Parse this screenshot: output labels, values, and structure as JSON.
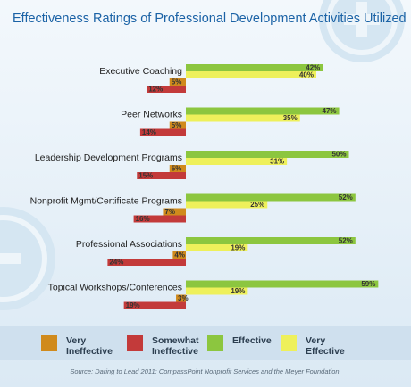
{
  "chart_data": {
    "type": "bar",
    "orientation": "horizontal",
    "title": "Effectiveness Ratings of Professional Development Activities Utilized",
    "categories": [
      "Executive Coaching",
      "Peer Networks",
      "Leadership Development Programs",
      "Nonprofit Mgmt/Certificate Programs",
      "Professional Associations",
      "Topical Workshops/Conferences"
    ],
    "series": [
      {
        "name": "Very Ineffective",
        "color": "#d08a1c",
        "direction": "left",
        "values": [
          5,
          5,
          5,
          7,
          4,
          3
        ]
      },
      {
        "name": "Somewhat Ineffective",
        "color": "#c33a3a",
        "direction": "left",
        "values": [
          12,
          14,
          15,
          16,
          24,
          19
        ]
      },
      {
        "name": "Effective",
        "color": "#8cc63f",
        "direction": "right",
        "values": [
          42,
          47,
          50,
          52,
          52,
          59
        ]
      },
      {
        "name": "Very Effective",
        "color": "#eef05b",
        "direction": "right",
        "values": [
          40,
          35,
          31,
          25,
          19,
          19
        ]
      }
    ],
    "value_suffix": "%",
    "grid": false,
    "legend_position": "bottom"
  },
  "source": "Source: Daring to Lead 2011: CompassPoint Nonprofit Services and the Meyer Foundation."
}
